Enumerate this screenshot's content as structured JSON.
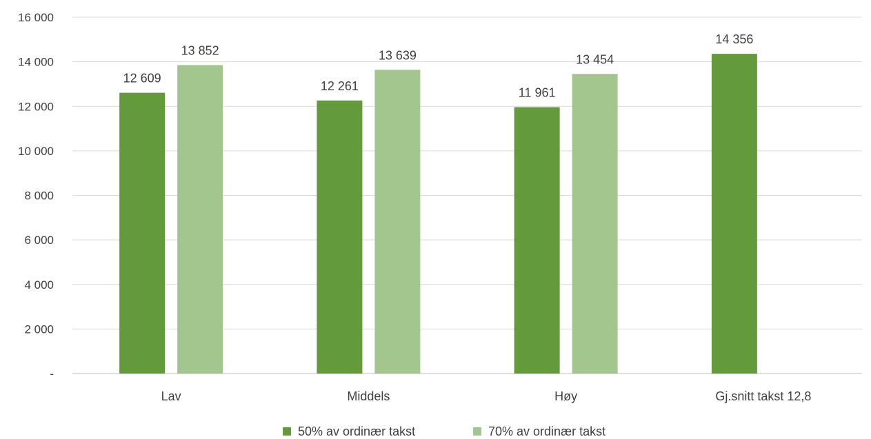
{
  "chart_data": {
    "type": "bar",
    "title": "",
    "xlabel": "",
    "ylabel": "",
    "categories": [
      "Lav",
      "Middels",
      "Høy",
      "Gj.snitt takst 12,8"
    ],
    "series": [
      {
        "name": "50% av ordinær takst",
        "color": "#629a3c",
        "values": [
          12609,
          12261,
          11961,
          14356
        ],
        "labels": [
          "12 609",
          "12 261",
          "11 961",
          "14 356"
        ]
      },
      {
        "name": "70% av ordinær takst",
        "color": "#a3c58e",
        "values": [
          13852,
          13639,
          13454,
          null
        ],
        "labels": [
          "13 852",
          "13 639",
          "13 454",
          ""
        ]
      }
    ],
    "ylim": [
      0,
      16000
    ],
    "yticks": [
      0,
      2000,
      4000,
      6000,
      8000,
      10000,
      12000,
      14000,
      16000
    ],
    "ytick_labels": [
      "-",
      "2 000",
      "4 000",
      "6 000",
      "8 000",
      "10 000",
      "12 000",
      "14 000",
      "16 000"
    ],
    "grid": true,
    "legend_position": "bottom"
  }
}
